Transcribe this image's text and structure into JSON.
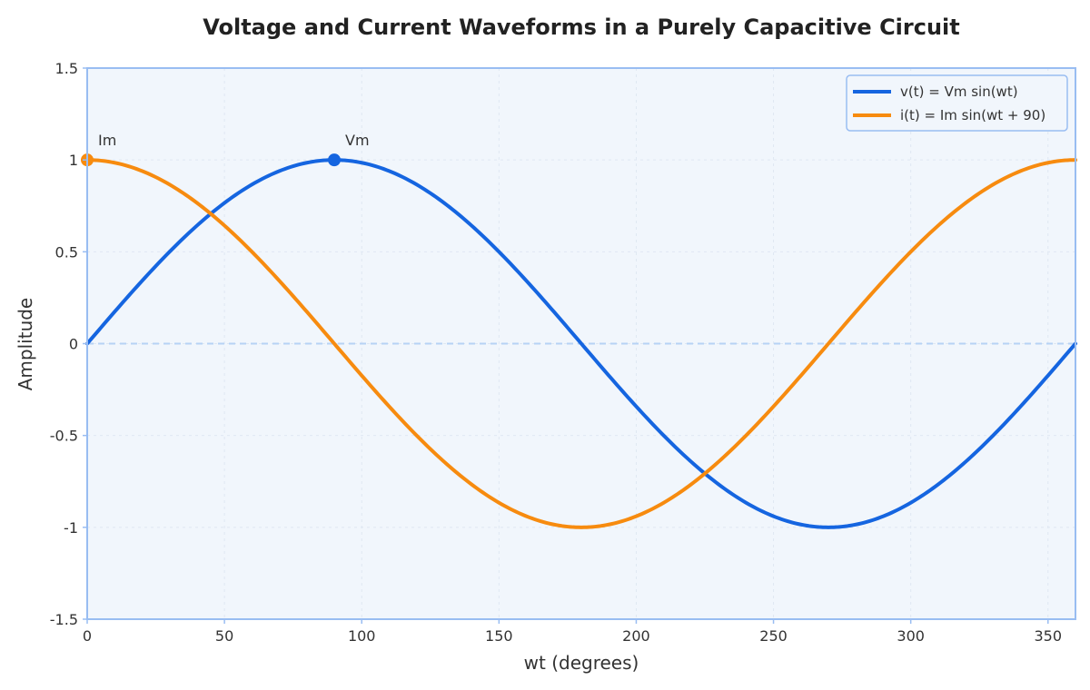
{
  "chart_data": {
    "type": "line",
    "title": "Voltage and Current Waveforms in a Purely Capacitive Circuit",
    "xlabel": "wt (degrees)",
    "ylabel": "Amplitude",
    "xlim": [
      0,
      360
    ],
    "ylim": [
      -1.5,
      1.5
    ],
    "xticks": [
      0,
      50,
      100,
      150,
      200,
      250,
      300,
      350
    ],
    "yticks": [
      1.5,
      1,
      0.5,
      0,
      -0.5,
      -1,
      -1.5
    ],
    "grid": true,
    "legend_position": "top-right",
    "series": [
      {
        "name": "v(t) = Vm sin(wt)",
        "color": "#1565e0",
        "x": [
          0,
          15,
          30,
          45,
          60,
          75,
          90,
          105,
          120,
          135,
          150,
          165,
          180,
          195,
          210,
          225,
          240,
          255,
          270,
          285,
          300,
          315,
          330,
          345,
          360
        ],
        "y": [
          0,
          0.259,
          0.5,
          0.707,
          0.866,
          0.966,
          1,
          0.966,
          0.866,
          0.707,
          0.5,
          0.259,
          0,
          -0.259,
          -0.5,
          -0.707,
          -0.866,
          -0.966,
          -1,
          -0.966,
          -0.866,
          -0.707,
          -0.5,
          -0.259,
          0
        ]
      },
      {
        "name": "i(t) = Im sin(wt + 90)",
        "color": "#f78b0f",
        "x": [
          0,
          15,
          30,
          45,
          60,
          75,
          90,
          105,
          120,
          135,
          150,
          165,
          180,
          195,
          210,
          225,
          240,
          255,
          270,
          285,
          300,
          315,
          330,
          345,
          360
        ],
        "y": [
          1,
          0.966,
          0.866,
          0.707,
          0.5,
          0.259,
          0,
          -0.259,
          -0.5,
          -0.707,
          -0.866,
          -0.966,
          -1,
          -0.966,
          -0.866,
          -0.707,
          -0.5,
          -0.259,
          0,
          0.259,
          0.5,
          0.707,
          0.866,
          0.966,
          1
        ]
      }
    ],
    "annotations": [
      {
        "text": "Vm",
        "x": 90,
        "y": 1,
        "color": "#1565e0"
      },
      {
        "text": "Im",
        "x": 0,
        "y": 1,
        "color": "#f78b0f"
      }
    ],
    "colors": {
      "plot_background": "#f1f6fc",
      "plot_border": "#99bdf2",
      "zero_line": "#b6d2f5",
      "grid": "#dfe7f2"
    }
  }
}
